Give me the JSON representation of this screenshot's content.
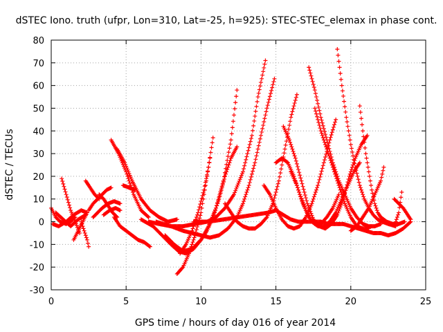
{
  "chart_data": {
    "type": "scatter",
    "title": "dSTEC Iono. truth (ufpr, Lon=310, Lat=-25, h=925): STEC-STEC_elemax in phase cont.",
    "xlabel": "GPS time / hours of day 016 of year 2014",
    "ylabel": "dSTEC  / TECUs",
    "xlim": [
      0,
      25
    ],
    "ylim": [
      -30,
      80
    ],
    "x_ticks": [
      0,
      5,
      10,
      15,
      20,
      25
    ],
    "y_ticks": [
      -30,
      -20,
      -10,
      0,
      10,
      20,
      30,
      40,
      50,
      60,
      70,
      80
    ],
    "grid": true,
    "legend": "none",
    "marker": "plus",
    "color": "#ff0000",
    "series": [
      {
        "x": [
          0.0,
          0.3,
          0.6,
          1.0,
          1.3,
          1.6
        ],
        "y": [
          6,
          2,
          0,
          -1,
          0,
          2
        ]
      },
      {
        "x": [
          0.1,
          0.5,
          1.0,
          1.5,
          2.0,
          2.4
        ],
        "y": [
          -1,
          -2,
          0,
          3,
          5,
          4
        ]
      },
      {
        "x": [
          0.3,
          0.8,
          1.3,
          1.8,
          2.3
        ],
        "y": [
          4,
          1,
          -2,
          1,
          3
        ]
      },
      {
        "x": [
          0.7,
          1.0,
          1.3,
          1.6,
          1.9
        ],
        "y": [
          19,
          12,
          5,
          0,
          -5
        ]
      },
      {
        "x": [
          1.5,
          1.8,
          2.1,
          2.4
        ],
        "y": [
          -8,
          -4,
          0,
          4
        ]
      },
      {
        "x": [
          2.0,
          2.2,
          2.4,
          2.5
        ],
        "y": [
          0,
          -4,
          -8,
          -11
        ]
      },
      {
        "x": [
          2.3,
          2.6,
          2.9,
          3.2
        ],
        "y": [
          18,
          15,
          12,
          10
        ]
      },
      {
        "x": [
          2.5,
          2.8,
          3.1,
          3.4,
          3.7,
          4.0
        ],
        "y": [
          5,
          8,
          10,
          12,
          14,
          15
        ]
      },
      {
        "x": [
          2.8,
          3.1,
          3.4,
          3.8,
          4.2,
          4.6
        ],
        "y": [
          2,
          4,
          6,
          8,
          9,
          8
        ]
      },
      {
        "x": [
          3.2,
          3.5,
          3.8,
          4.1,
          4.4
        ],
        "y": [
          12,
          10,
          7,
          4,
          2
        ]
      },
      {
        "x": [
          3.5,
          3.9,
          4.3,
          4.6
        ],
        "y": [
          3,
          5,
          6,
          5
        ]
      },
      {
        "x": [
          4.2,
          4.6,
          5.0,
          5.4,
          5.8,
          6.2,
          6.6
        ],
        "y": [
          2,
          -2,
          -4,
          -6,
          -8,
          -9,
          -11
        ]
      },
      {
        "x": [
          4.0,
          4.5,
          5.0,
          5.5,
          6.0,
          6.5
        ],
        "y": [
          36,
          30,
          22,
          12,
          5,
          2
        ]
      },
      {
        "x": [
          4.4,
          4.9,
          5.4,
          6.0,
          6.6,
          7.2,
          7.8,
          8.4
        ],
        "y": [
          32,
          26,
          18,
          10,
          5,
          2,
          0,
          1
        ]
      },
      {
        "x": [
          4.8,
          5.2,
          5.6
        ],
        "y": [
          16,
          15,
          14
        ]
      },
      {
        "x": [
          6.0,
          6.8,
          7.4,
          8.0,
          8.5,
          9.0,
          9.5,
          10.0,
          10.5,
          11.0,
          11.5,
          12.0,
          12.4
        ],
        "y": [
          1,
          -2,
          -6,
          -10,
          -13,
          -14,
          -12,
          -8,
          -2,
          6,
          18,
          36,
          58
        ]
      },
      {
        "x": [
          6.5,
          7.2,
          8.0,
          8.8,
          9.6,
          10.4,
          11.0,
          11.6,
          12.2,
          12.8,
          13.4,
          13.8,
          14.3
        ],
        "y": [
          0,
          -1,
          -2,
          -2,
          -1,
          0,
          2,
          6,
          12,
          22,
          38,
          55,
          71
        ]
      },
      {
        "x": [
          7.0,
          8.0,
          8.8,
          9.4,
          10.0,
          10.6,
          11.2,
          11.8,
          12.4,
          12.8,
          13.2,
          13.6,
          14.0,
          14.4,
          14.9
        ],
        "y": [
          0,
          -2,
          -4,
          -5,
          -6,
          -7,
          -6,
          -3,
          2,
          8,
          16,
          26,
          38,
          50,
          63
        ]
      },
      {
        "x": [
          7.6,
          8.2,
          8.8,
          9.4,
          10.0,
          10.4,
          10.8,
          11.2,
          11.6,
          12.0,
          12.4
        ],
        "y": [
          -6,
          -10,
          -13,
          -12,
          -8,
          -4,
          2,
          10,
          20,
          28,
          33
        ]
      },
      {
        "x": [
          8.4,
          8.8,
          9.2,
          9.6,
          10.0,
          10.3,
          10.6
        ],
        "y": [
          -23,
          -20,
          -14,
          -6,
          4,
          16,
          28
        ]
      },
      {
        "x": [
          8.6,
          9.0,
          9.4,
          9.8,
          10.2,
          10.5,
          10.8
        ],
        "y": [
          -14,
          -10,
          -4,
          4,
          14,
          24,
          37
        ]
      },
      {
        "x": [
          9.5,
          10.5,
          11.5,
          12.5,
          13.5,
          14.5,
          15.0,
          15.5,
          16.0,
          16.5,
          17.0,
          17.5,
          18.0,
          18.5,
          19.0,
          19.5,
          20.0,
          20.5,
          21.0,
          21.5,
          22.0,
          22.5,
          23.0,
          23.5,
          24.0
        ],
        "y": [
          0,
          0,
          1,
          2,
          3,
          4,
          5,
          3,
          1,
          0,
          0,
          0,
          0,
          -1,
          -1,
          -1,
          -2,
          -3,
          -4,
          -5,
          -5,
          -6,
          -5,
          -3,
          0
        ]
      },
      {
        "x": [
          11.6,
          12.0,
          12.4,
          12.8,
          13.2,
          13.6,
          14.0,
          14.4,
          14.8,
          15.2,
          15.6,
          16.0,
          16.4
        ],
        "y": [
          8,
          4,
          0,
          -2,
          -3,
          -3,
          -1,
          2,
          8,
          18,
          32,
          46,
          56
        ]
      },
      {
        "x": [
          14.2,
          14.6,
          15.0,
          15.4,
          15.8,
          16.2,
          16.6,
          17.0,
          17.4,
          17.8,
          18.2,
          18.6,
          19.0
        ],
        "y": [
          16,
          12,
          6,
          1,
          -2,
          -3,
          -2,
          2,
          8,
          16,
          26,
          36,
          45
        ]
      },
      {
        "x": [
          15.5,
          15.9,
          16.3,
          16.7,
          17.1,
          17.5,
          17.9,
          18.3,
          18.7,
          19.1,
          19.5,
          19.9,
          20.3,
          20.7,
          21.1
        ],
        "y": [
          42,
          36,
          28,
          18,
          8,
          1,
          -2,
          -3,
          -1,
          3,
          10,
          20,
          28,
          34,
          38
        ]
      },
      {
        "x": [
          15.0,
          15.4,
          15.8,
          16.2,
          16.6,
          17.0,
          17.4,
          17.8,
          18.2,
          18.6,
          19.0,
          19.4,
          19.8,
          20.2,
          20.6
        ],
        "y": [
          26,
          28,
          26,
          20,
          12,
          5,
          0,
          -2,
          -2,
          0,
          4,
          10,
          16,
          22,
          26
        ]
      },
      {
        "x": [
          16.0,
          16.4,
          16.8,
          17.2,
          17.6,
          18.0,
          18.4,
          18.8,
          19.2
        ],
        "y": [
          22,
          16,
          8,
          2,
          -1,
          -1,
          2,
          6,
          12
        ]
      },
      {
        "x": [
          17.2,
          17.6,
          18.0,
          18.4,
          18.8,
          19.2,
          19.6,
          20.0,
          20.4,
          20.8,
          21.2,
          21.6,
          22.0
        ],
        "y": [
          68,
          58,
          46,
          36,
          26,
          18,
          12,
          6,
          2,
          -1,
          -2,
          -2,
          -1
        ]
      },
      {
        "x": [
          17.6,
          18.0,
          18.4,
          18.8,
          19.2,
          19.6,
          20.0,
          20.4,
          20.8,
          21.2
        ],
        "y": [
          50,
          40,
          32,
          24,
          16,
          8,
          2,
          -2,
          -3,
          -3
        ]
      },
      {
        "x": [
          19.1,
          19.4,
          19.7,
          20.0,
          20.3,
          20.6,
          20.9,
          21.2,
          21.5,
          21.8,
          22.1,
          22.5,
          23.0
        ],
        "y": [
          76,
          60,
          46,
          34,
          24,
          16,
          10,
          6,
          3,
          1,
          0,
          -1,
          -2
        ]
      },
      {
        "x": [
          20.6,
          20.8,
          21.0,
          21.2,
          21.4,
          21.6,
          21.8,
          22.0,
          22.4,
          22.8,
          23.2,
          23.6
        ],
        "y": [
          51,
          40,
          30,
          22,
          14,
          8,
          4,
          2,
          0,
          -1,
          -1,
          0
        ]
      },
      {
        "x": [
          20.0,
          20.4,
          20.8,
          21.2,
          21.6,
          22.0,
          22.2
        ],
        "y": [
          -4,
          -2,
          2,
          6,
          12,
          18,
          24
        ]
      },
      {
        "x": [
          22.9,
          23.2,
          23.5,
          23.8,
          24.0
        ],
        "y": [
          10,
          8,
          6,
          3,
          1
        ]
      },
      {
        "x": [
          23.0,
          23.2,
          23.4
        ],
        "y": [
          0,
          4,
          13
        ]
      }
    ]
  }
}
